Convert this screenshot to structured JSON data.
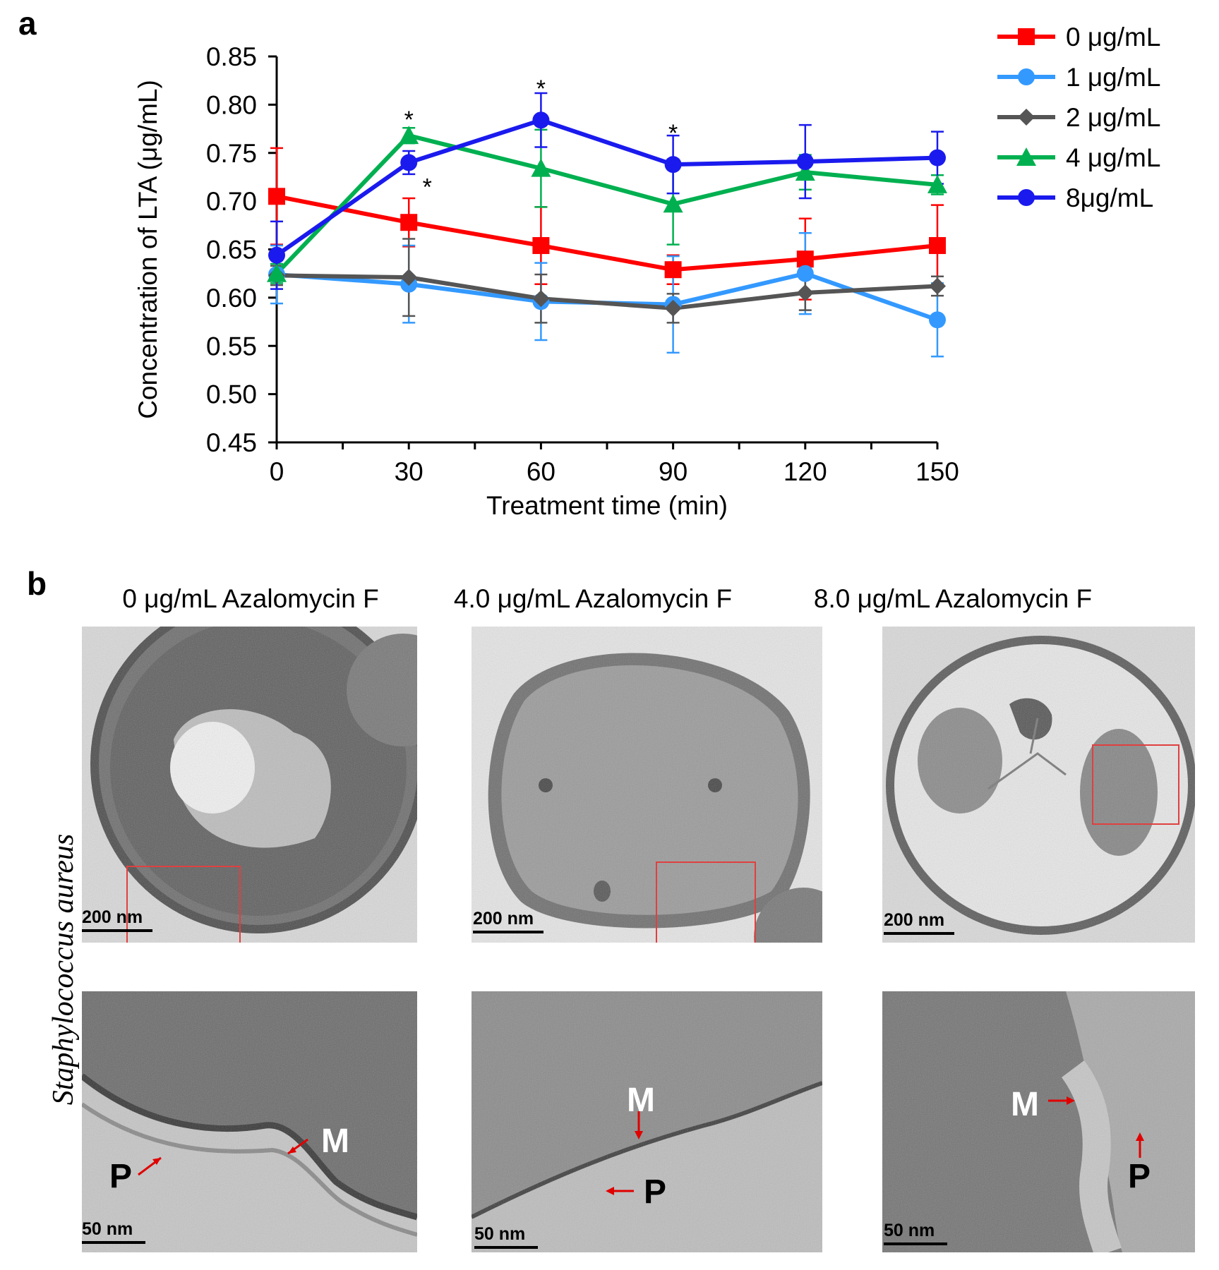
{
  "panel_a_letter": "a",
  "panel_b_letter": "b",
  "chart_data": {
    "type": "line",
    "xlabel": "Treatment time (min)",
    "ylabel": "Concentration of LTA (μg/mL)",
    "x": [
      0,
      30,
      60,
      90,
      120,
      150
    ],
    "ylim": [
      0.45,
      0.85
    ],
    "yticks": [
      "0.45",
      "0.50",
      "0.55",
      "0.60",
      "0.65",
      "0.70",
      "0.75",
      "0.80",
      "0.85"
    ],
    "xticks": [
      "0",
      "30",
      "60",
      "90",
      "120",
      "150"
    ],
    "legend_position": "top-right",
    "series": [
      {
        "name": "0 μg/mL",
        "color": "#ff0000",
        "marker": "square",
        "values": [
          0.705,
          0.678,
          0.654,
          0.629,
          0.64,
          0.654
        ],
        "errors": [
          0.05,
          0.025,
          0.04,
          0.015,
          0.042,
          0.042
        ]
      },
      {
        "name": "1 μg/mL",
        "color": "#3399ff",
        "marker": "circle",
        "values": [
          0.624,
          0.614,
          0.596,
          0.593,
          0.625,
          0.577
        ],
        "errors": [
          0.03,
          0.04,
          0.04,
          0.05,
          0.042,
          0.038
        ]
      },
      {
        "name": "2 μg/mL",
        "color": "#555555",
        "marker": "diamond",
        "values": [
          0.623,
          0.621,
          0.599,
          0.589,
          0.605,
          0.612
        ],
        "errors": [
          0.01,
          0.04,
          0.025,
          0.015,
          0.018,
          0.01
        ]
      },
      {
        "name": "4 μg/mL",
        "color": "#00b050",
        "marker": "triangle",
        "values": [
          0.625,
          0.768,
          0.734,
          0.697,
          0.73,
          0.717
        ],
        "errors": [
          0.01,
          0.008,
          0.04,
          0.042,
          0.018,
          0.01
        ]
      },
      {
        "name": "8μg/mL",
        "color": "#1a1aee",
        "marker": "circle",
        "values": [
          0.644,
          0.74,
          0.784,
          0.738,
          0.741,
          0.745
        ],
        "errors": [
          0.035,
          0.012,
          0.028,
          0.03,
          0.038,
          0.027
        ]
      }
    ],
    "annotations": [
      {
        "text": "*",
        "x": 30,
        "y": 0.788
      },
      {
        "text": "*",
        "x": 30,
        "y": 0.718
      },
      {
        "text": "*",
        "x": 60,
        "y": 0.82
      },
      {
        "text": "*",
        "x": 90,
        "y": 0.774
      }
    ]
  },
  "tem": {
    "species_label": "Staphylococcus aureus",
    "columns": [
      {
        "title": "0 μg/mL Azalomycin F",
        "scale_top": "200 nm",
        "scale_bottom": "50 nm"
      },
      {
        "title": "4.0 μg/mL Azalomycin F",
        "scale_top": "200 nm",
        "scale_bottom": "50 nm"
      },
      {
        "title": "8.0 μg/mL Azalomycin F",
        "scale_top": "200 nm",
        "scale_bottom": "50 nm"
      }
    ],
    "membrane_label": "M",
    "wall_label": "P"
  }
}
